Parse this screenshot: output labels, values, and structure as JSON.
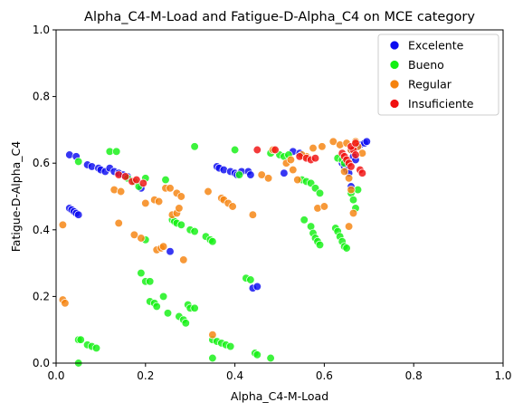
{
  "chart_data": {
    "type": "scatter",
    "title": "Alpha_C4-M-Load and Fatigue-D-Alpha_C4 on MCE category",
    "xlabel": "Alpha_C4-M-Load",
    "ylabel": "Fatigue-D-Alpha_C4",
    "xlim": [
      0,
      1
    ],
    "ylim": [
      0,
      1
    ],
    "xticks": [
      "0.0",
      "0.2",
      "0.4",
      "0.6",
      "0.8",
      "1.0"
    ],
    "yticks": [
      "0.0",
      "0.2",
      "0.4",
      "0.6",
      "0.8",
      "1.0"
    ],
    "grid": false,
    "legend_position": "top-right",
    "series": [
      {
        "name": "Excelente",
        "color": "#0b0bf0",
        "points": [
          [
            0.03,
            0.625
          ],
          [
            0.045,
            0.62
          ],
          [
            0.03,
            0.465
          ],
          [
            0.035,
            0.46
          ],
          [
            0.04,
            0.455
          ],
          [
            0.045,
            0.45
          ],
          [
            0.05,
            0.445
          ],
          [
            0.07,
            0.595
          ],
          [
            0.08,
            0.59
          ],
          [
            0.095,
            0.585
          ],
          [
            0.1,
            0.58
          ],
          [
            0.11,
            0.575
          ],
          [
            0.12,
            0.585
          ],
          [
            0.13,
            0.575
          ],
          [
            0.14,
            0.57
          ],
          [
            0.15,
            0.565
          ],
          [
            0.16,
            0.56
          ],
          [
            0.19,
            0.525
          ],
          [
            0.255,
            0.335
          ],
          [
            0.36,
            0.59
          ],
          [
            0.365,
            0.585
          ],
          [
            0.375,
            0.58
          ],
          [
            0.39,
            0.575
          ],
          [
            0.4,
            0.57
          ],
          [
            0.405,
            0.565
          ],
          [
            0.415,
            0.575
          ],
          [
            0.43,
            0.575
          ],
          [
            0.435,
            0.565
          ],
          [
            0.44,
            0.225
          ],
          [
            0.45,
            0.23
          ],
          [
            0.51,
            0.57
          ],
          [
            0.53,
            0.635
          ],
          [
            0.545,
            0.63
          ],
          [
            0.64,
            0.6
          ],
          [
            0.645,
            0.59
          ],
          [
            0.65,
            0.58
          ],
          [
            0.655,
            0.57
          ],
          [
            0.66,
            0.64
          ],
          [
            0.665,
            0.62
          ],
          [
            0.67,
            0.61
          ],
          [
            0.675,
            0.65
          ],
          [
            0.68,
            0.655
          ],
          [
            0.69,
            0.66
          ],
          [
            0.695,
            0.665
          ],
          [
            0.66,
            0.53
          ]
        ]
      },
      {
        "name": "Bueno",
        "color": "#12f012",
        "points": [
          [
            0.05,
            0.605
          ],
          [
            0.05,
            0.07
          ],
          [
            0.055,
            0.07
          ],
          [
            0.07,
            0.055
          ],
          [
            0.08,
            0.05
          ],
          [
            0.09,
            0.045
          ],
          [
            0.05,
            0.0
          ],
          [
            0.12,
            0.635
          ],
          [
            0.135,
            0.635
          ],
          [
            0.16,
            0.555
          ],
          [
            0.175,
            0.545
          ],
          [
            0.185,
            0.53
          ],
          [
            0.2,
            0.555
          ],
          [
            0.2,
            0.37
          ],
          [
            0.19,
            0.27
          ],
          [
            0.2,
            0.245
          ],
          [
            0.21,
            0.245
          ],
          [
            0.21,
            0.185
          ],
          [
            0.22,
            0.18
          ],
          [
            0.225,
            0.17
          ],
          [
            0.24,
            0.2
          ],
          [
            0.245,
            0.55
          ],
          [
            0.25,
            0.15
          ],
          [
            0.26,
            0.43
          ],
          [
            0.265,
            0.425
          ],
          [
            0.27,
            0.42
          ],
          [
            0.28,
            0.415
          ],
          [
            0.275,
            0.14
          ],
          [
            0.285,
            0.13
          ],
          [
            0.29,
            0.12
          ],
          [
            0.295,
            0.175
          ],
          [
            0.3,
            0.165
          ],
          [
            0.31,
            0.165
          ],
          [
            0.3,
            0.4
          ],
          [
            0.31,
            0.395
          ],
          [
            0.31,
            0.65
          ],
          [
            0.335,
            0.38
          ],
          [
            0.345,
            0.37
          ],
          [
            0.35,
            0.365
          ],
          [
            0.35,
            0.015
          ],
          [
            0.35,
            0.07
          ],
          [
            0.36,
            0.065
          ],
          [
            0.37,
            0.06
          ],
          [
            0.38,
            0.055
          ],
          [
            0.39,
            0.05
          ],
          [
            0.4,
            0.64
          ],
          [
            0.41,
            0.565
          ],
          [
            0.425,
            0.255
          ],
          [
            0.435,
            0.25
          ],
          [
            0.445,
            0.03
          ],
          [
            0.45,
            0.025
          ],
          [
            0.48,
            0.015
          ],
          [
            0.48,
            0.63
          ],
          [
            0.5,
            0.625
          ],
          [
            0.51,
            0.62
          ],
          [
            0.52,
            0.625
          ],
          [
            0.55,
            0.55
          ],
          [
            0.56,
            0.545
          ],
          [
            0.57,
            0.54
          ],
          [
            0.58,
            0.525
          ],
          [
            0.59,
            0.51
          ],
          [
            0.555,
            0.43
          ],
          [
            0.57,
            0.41
          ],
          [
            0.575,
            0.39
          ],
          [
            0.58,
            0.375
          ],
          [
            0.585,
            0.365
          ],
          [
            0.59,
            0.355
          ],
          [
            0.625,
            0.405
          ],
          [
            0.63,
            0.395
          ],
          [
            0.635,
            0.38
          ],
          [
            0.64,
            0.365
          ],
          [
            0.645,
            0.35
          ],
          [
            0.65,
            0.345
          ],
          [
            0.63,
            0.615
          ],
          [
            0.64,
            0.61
          ],
          [
            0.645,
            0.6
          ],
          [
            0.66,
            0.51
          ],
          [
            0.665,
            0.49
          ],
          [
            0.67,
            0.465
          ],
          [
            0.675,
            0.52
          ]
        ]
      },
      {
        "name": "Regular",
        "color": "#f5820d",
        "points": [
          [
            0.015,
            0.415
          ],
          [
            0.015,
            0.19
          ],
          [
            0.02,
            0.18
          ],
          [
            0.13,
            0.52
          ],
          [
            0.14,
            0.42
          ],
          [
            0.145,
            0.515
          ],
          [
            0.175,
            0.385
          ],
          [
            0.19,
            0.375
          ],
          [
            0.2,
            0.48
          ],
          [
            0.22,
            0.49
          ],
          [
            0.23,
            0.485
          ],
          [
            0.225,
            0.34
          ],
          [
            0.235,
            0.345
          ],
          [
            0.24,
            0.35
          ],
          [
            0.245,
            0.525
          ],
          [
            0.255,
            0.525
          ],
          [
            0.26,
            0.445
          ],
          [
            0.27,
            0.45
          ],
          [
            0.275,
            0.465
          ],
          [
            0.27,
            0.51
          ],
          [
            0.28,
            0.5
          ],
          [
            0.285,
            0.31
          ],
          [
            0.34,
            0.515
          ],
          [
            0.35,
            0.085
          ],
          [
            0.37,
            0.495
          ],
          [
            0.375,
            0.49
          ],
          [
            0.385,
            0.48
          ],
          [
            0.395,
            0.47
          ],
          [
            0.44,
            0.445
          ],
          [
            0.46,
            0.565
          ],
          [
            0.475,
            0.555
          ],
          [
            0.485,
            0.64
          ],
          [
            0.515,
            0.6
          ],
          [
            0.53,
            0.58
          ],
          [
            0.54,
            0.55
          ],
          [
            0.56,
            0.62
          ],
          [
            0.575,
            0.645
          ],
          [
            0.585,
            0.465
          ],
          [
            0.595,
            0.65
          ],
          [
            0.6,
            0.47
          ],
          [
            0.62,
            0.665
          ],
          [
            0.635,
            0.655
          ],
          [
            0.65,
            0.66
          ],
          [
            0.66,
            0.64
          ],
          [
            0.67,
            0.665
          ],
          [
            0.665,
            0.45
          ],
          [
            0.655,
            0.41
          ],
          [
            0.66,
            0.52
          ],
          [
            0.645,
            0.575
          ],
          [
            0.655,
            0.555
          ],
          [
            0.675,
            0.65
          ],
          [
            0.685,
            0.63
          ],
          [
            0.55,
            0.625
          ],
          [
            0.525,
            0.61
          ]
        ]
      },
      {
        "name": "Insuficiente",
        "color": "#f01010",
        "points": [
          [
            0.14,
            0.565
          ],
          [
            0.155,
            0.56
          ],
          [
            0.17,
            0.545
          ],
          [
            0.18,
            0.55
          ],
          [
            0.195,
            0.54
          ],
          [
            0.45,
            0.64
          ],
          [
            0.49,
            0.64
          ],
          [
            0.545,
            0.62
          ],
          [
            0.56,
            0.615
          ],
          [
            0.57,
            0.61
          ],
          [
            0.58,
            0.615
          ],
          [
            0.64,
            0.63
          ],
          [
            0.645,
            0.62
          ],
          [
            0.65,
            0.61
          ],
          [
            0.655,
            0.6
          ],
          [
            0.66,
            0.59
          ],
          [
            0.665,
            0.64
          ],
          [
            0.67,
            0.625
          ],
          [
            0.68,
            0.58
          ],
          [
            0.685,
            0.57
          ],
          [
            0.66,
            0.65
          ],
          [
            0.67,
            0.66
          ]
        ]
      }
    ]
  }
}
